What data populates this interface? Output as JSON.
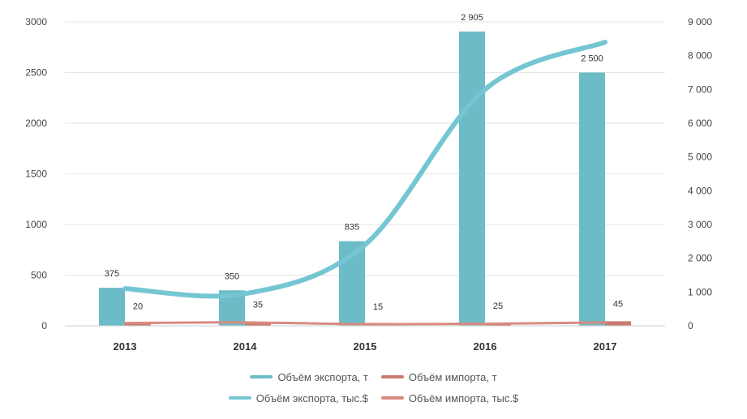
{
  "chart_data": {
    "type": "bar",
    "categories": [
      "2013",
      "2014",
      "2015",
      "2016",
      "2017"
    ],
    "series": [
      {
        "name": "Объём экспорта, т",
        "kind": "bar",
        "axis": "left",
        "color": "#6bbcc6",
        "values": [
          375,
          350,
          835,
          2905,
          2500
        ]
      },
      {
        "name": "Объём импорта, т",
        "kind": "bar",
        "axis": "left",
        "color": "#c97b70",
        "values": [
          20,
          35,
          15,
          25,
          45
        ]
      },
      {
        "name": "Объём экспорта, тыс.$",
        "kind": "line",
        "axis": "right",
        "color": "#74c6d2",
        "values": [
          1100,
          950,
          2400,
          7000,
          8400
        ]
      },
      {
        "name": "Объём импорта, тыс.$",
        "kind": "line",
        "axis": "right",
        "color": "#d98a80",
        "values": [
          80,
          100,
          50,
          60,
          100
        ]
      }
    ],
    "data_labels": {
      "export_t": [
        "375",
        "350",
        "835",
        "2 905",
        "2 500"
      ],
      "import_t": [
        "20",
        "35",
        "15",
        "25",
        "45"
      ]
    },
    "ylim_left": [
      0,
      3000
    ],
    "yticks_left": [
      "0",
      "500",
      "1000",
      "1500",
      "2000",
      "2500",
      "3000"
    ],
    "ylim_right": [
      0,
      9000
    ],
    "yticks_right": [
      "0",
      "1 000",
      "2 000",
      "3 000",
      "4 000",
      "5 000",
      "6 000",
      "7 000",
      "8 000",
      "9 000"
    ],
    "grid": true,
    "legend_position": "bottom",
    "title": "",
    "xlabel": "",
    "ylabel": ""
  }
}
